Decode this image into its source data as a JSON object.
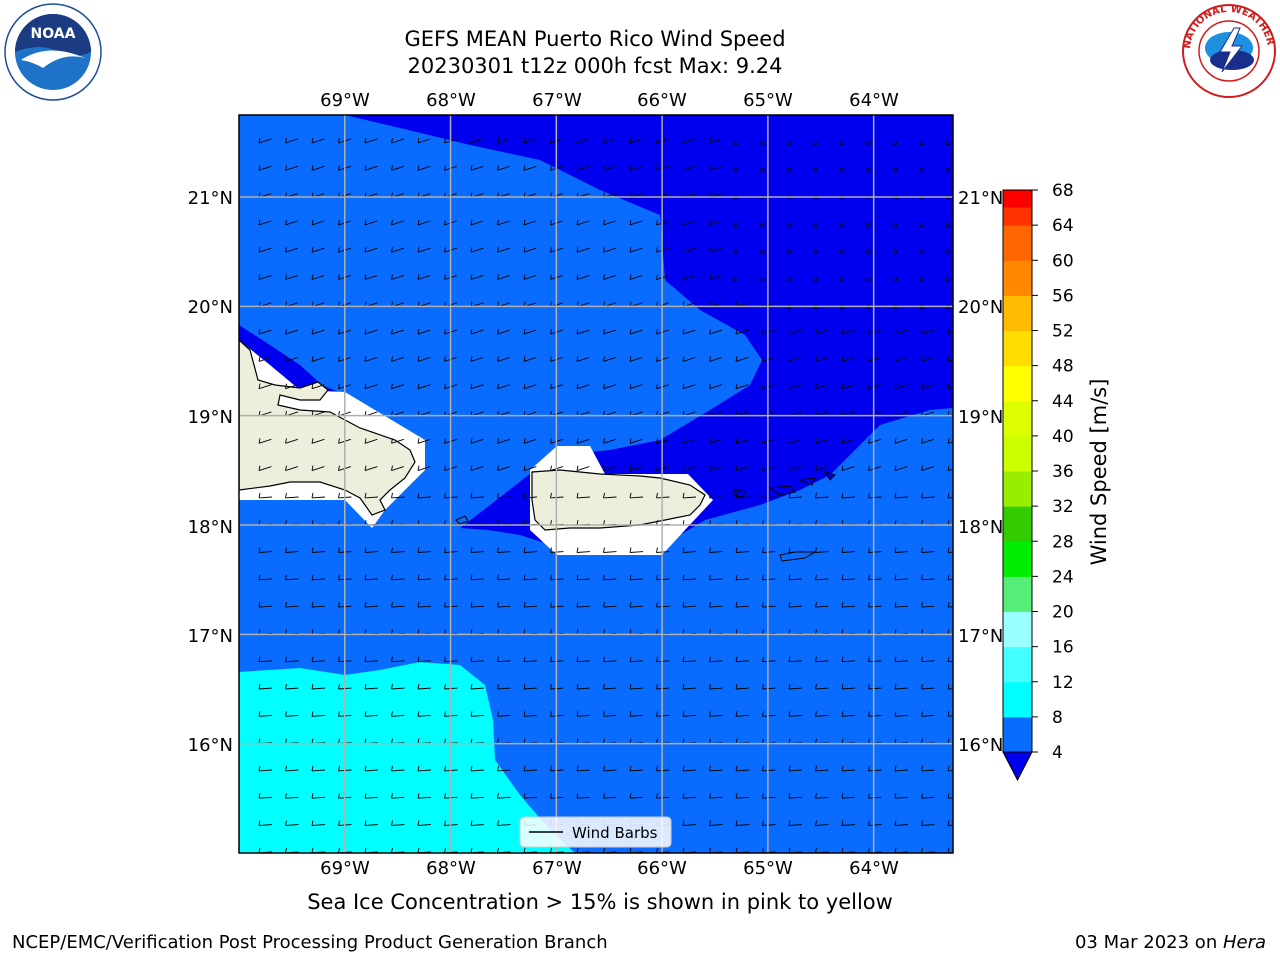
{
  "title": {
    "line1": "GEFS MEAN Puerto Rico Wind Speed",
    "line2": "20230301 t12z 000h fcst   Max: 9.24"
  },
  "map": {
    "lon_labels": [
      "69°W",
      "68°W",
      "67°W",
      "66°W",
      "65°W",
      "64°W"
    ],
    "lat_labels": [
      "21°N",
      "20°N",
      "19°N",
      "18°N",
      "17°N",
      "16°N"
    ],
    "lon_range": [
      -70.0,
      -63.25
    ],
    "lat_range": [
      15.0,
      21.75
    ],
    "legend_label": "Wind Barbs",
    "fill_colors": {
      "below_4": "#0000ee",
      "4_to_8": "#0a6cff",
      "8_to_12": "#00ffff",
      "land": "#eeeedd",
      "missing": "#ffffff",
      "gridline": "#b0b0b0"
    }
  },
  "colorbar": {
    "label": "Wind Speed [m/s]",
    "ticks": [
      "4",
      "8",
      "12",
      "16",
      "20",
      "24",
      "28",
      "32",
      "36",
      "40",
      "44",
      "48",
      "52",
      "56",
      "60",
      "64",
      "68"
    ],
    "colors": [
      "#0a6cff",
      "#00ffff",
      "#44ffff",
      "#99ffff",
      "#55ee77",
      "#00ee00",
      "#33cc00",
      "#99ee00",
      "#ccff00",
      "#ddff00",
      "#ffff00",
      "#ffdd00",
      "#ffbb00",
      "#ff8800",
      "#ff6600",
      "#ff3300"
    ],
    "under_color": "#0000ee",
    "top_color": "#ff0000"
  },
  "logos": {
    "noaa_text": "NOAA",
    "nws_text": "NATIONAL WEATHER SERVICE"
  },
  "caption": "Sea Ice Concentration > 15% is shown in pink to yellow",
  "footer": {
    "left": "NCEP/EMC/Verification Post Processing Product Generation Branch",
    "right_prefix": "03 Mar 2023 on ",
    "right_machine": "Hera"
  }
}
